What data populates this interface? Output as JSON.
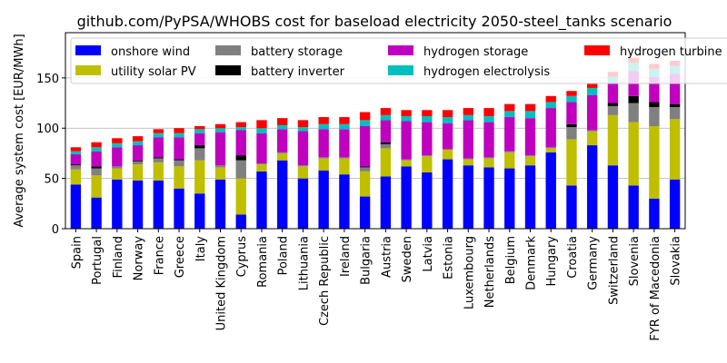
{
  "chart_data": {
    "type": "bar",
    "stacked": true,
    "title": "github.com/PyPSA/WHOBS cost for baseload electricity 2050-steel_tanks scenario",
    "xlabel": "",
    "ylabel": "Average system cost [EUR/MWh]",
    "ylim": [
      0,
      195
    ],
    "yticks": [
      0,
      50,
      100,
      150
    ],
    "grid": true,
    "legend_position": "top",
    "categories": [
      "Spain",
      "Portugal",
      "Finland",
      "Norway",
      "France",
      "Greece",
      "Italy",
      "United Kingdom",
      "Cyprus",
      "Romania",
      "Poland",
      "Lithuania",
      "Czech Republic",
      "Ireland",
      "Bulgaria",
      "Austria",
      "Sweden",
      "Latvia",
      "Estonia",
      "Luxembourg",
      "Netherlands",
      "Belgium",
      "Denmark",
      "Hungary",
      "Croatia",
      "Germany",
      "Switzerland",
      "Slovenia",
      "FYR of Macedonia",
      "Slovakia"
    ],
    "series": [
      {
        "name": "onshore wind",
        "color": "#0000ff",
        "values": [
          44,
          31,
          49,
          48,
          48,
          40,
          35,
          49,
          14,
          57,
          68,
          50,
          58,
          54,
          32,
          52,
          62,
          56,
          69,
          63,
          61,
          60,
          63,
          76,
          43,
          83,
          63,
          43,
          30,
          49
        ]
      },
      {
        "name": "utility solar PV",
        "color": "#bfbf00",
        "values": [
          15,
          22,
          11,
          16,
          18,
          22,
          33,
          12,
          36,
          7,
          7,
          12,
          12,
          16,
          25,
          28,
          6,
          16,
          10,
          6,
          9,
          16,
          9,
          4,
          46,
          14,
          50,
          63,
          72,
          60
        ]
      },
      {
        "name": "battery storage",
        "color": "#808080",
        "values": [
          4,
          7,
          2,
          3,
          4,
          6,
          12,
          2,
          18,
          1,
          1,
          1,
          1,
          1,
          4,
          4,
          1,
          1,
          0,
          1,
          1,
          1,
          1,
          1,
          12,
          1,
          9,
          19,
          19,
          12
        ]
      },
      {
        "name": "battery inverter",
        "color": "#000000",
        "values": [
          1,
          2,
          0,
          1,
          1,
          1,
          3,
          0,
          5,
          0,
          0,
          0,
          0,
          0,
          1,
          2,
          0,
          0,
          0,
          0,
          0,
          0,
          0,
          0,
          3,
          0,
          3,
          7,
          5,
          3
        ]
      },
      {
        "name": "hydrogen storage",
        "color": "#bf00bf",
        "values": [
          10,
          15,
          19,
          15,
          20,
          22,
          12,
          33,
          25,
          30,
          23,
          34,
          28,
          28,
          40,
          22,
          38,
          33,
          26,
          38,
          35,
          34,
          37,
          39,
          22,
          35,
          19,
          25,
          25,
          30
        ]
      },
      {
        "name": "hydrogen electrolysis",
        "color": "#00bfbf",
        "values": [
          3,
          4,
          4,
          4,
          4,
          4,
          4,
          4,
          3,
          5,
          4,
          4,
          5,
          5,
          6,
          5,
          5,
          6,
          6,
          5,
          6,
          6,
          7,
          6,
          6,
          7,
          7,
          8,
          8,
          8
        ]
      },
      {
        "name": "hydrogen turbine",
        "color": "#ff0000",
        "values": [
          4,
          5,
          5,
          5,
          4,
          5,
          3,
          4,
          5,
          8,
          7,
          7,
          7,
          7,
          8,
          7,
          6,
          6,
          7,
          7,
          8,
          7,
          7,
          6,
          5,
          5,
          5,
          5,
          5,
          5
        ]
      }
    ]
  }
}
